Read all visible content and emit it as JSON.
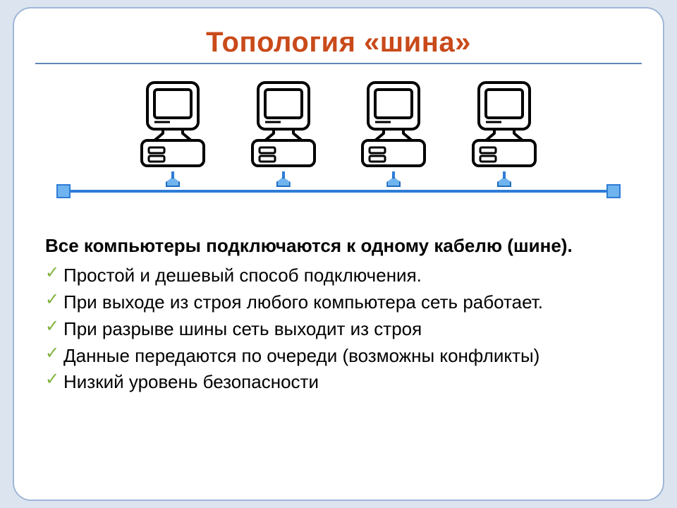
{
  "title": {
    "text": "Топология «шина»",
    "color": "#c94a1a",
    "fontsize": 40
  },
  "rule_color": "#5e87b8",
  "diagram": {
    "type": "network",
    "computer_count": 4,
    "bus_color": "#2e7cd6",
    "tap_fill": "#6fb4ef",
    "terminator_fill": "#6fb4ef",
    "computer_stroke": "#000000",
    "computer_fill": "#ffffff"
  },
  "lead": "Все компьютеры подключаются к одному кабелю (шине).",
  "checkmark_color": "#7fb23a",
  "bullets": [
    "Простой и дешевый способ подключения.",
    "При выходе из строя любого компьютера сеть работает.",
    "При разрыве шины сеть выходит из строя",
    "Данные передаются по очереди (возможны конфликты)",
    "Низкий уровень безопасности"
  ],
  "body_fontsize": 26,
  "body_color": "#000000",
  "slide_border_color": "#9fb6d8",
  "page_bg": "#dce5ef"
}
